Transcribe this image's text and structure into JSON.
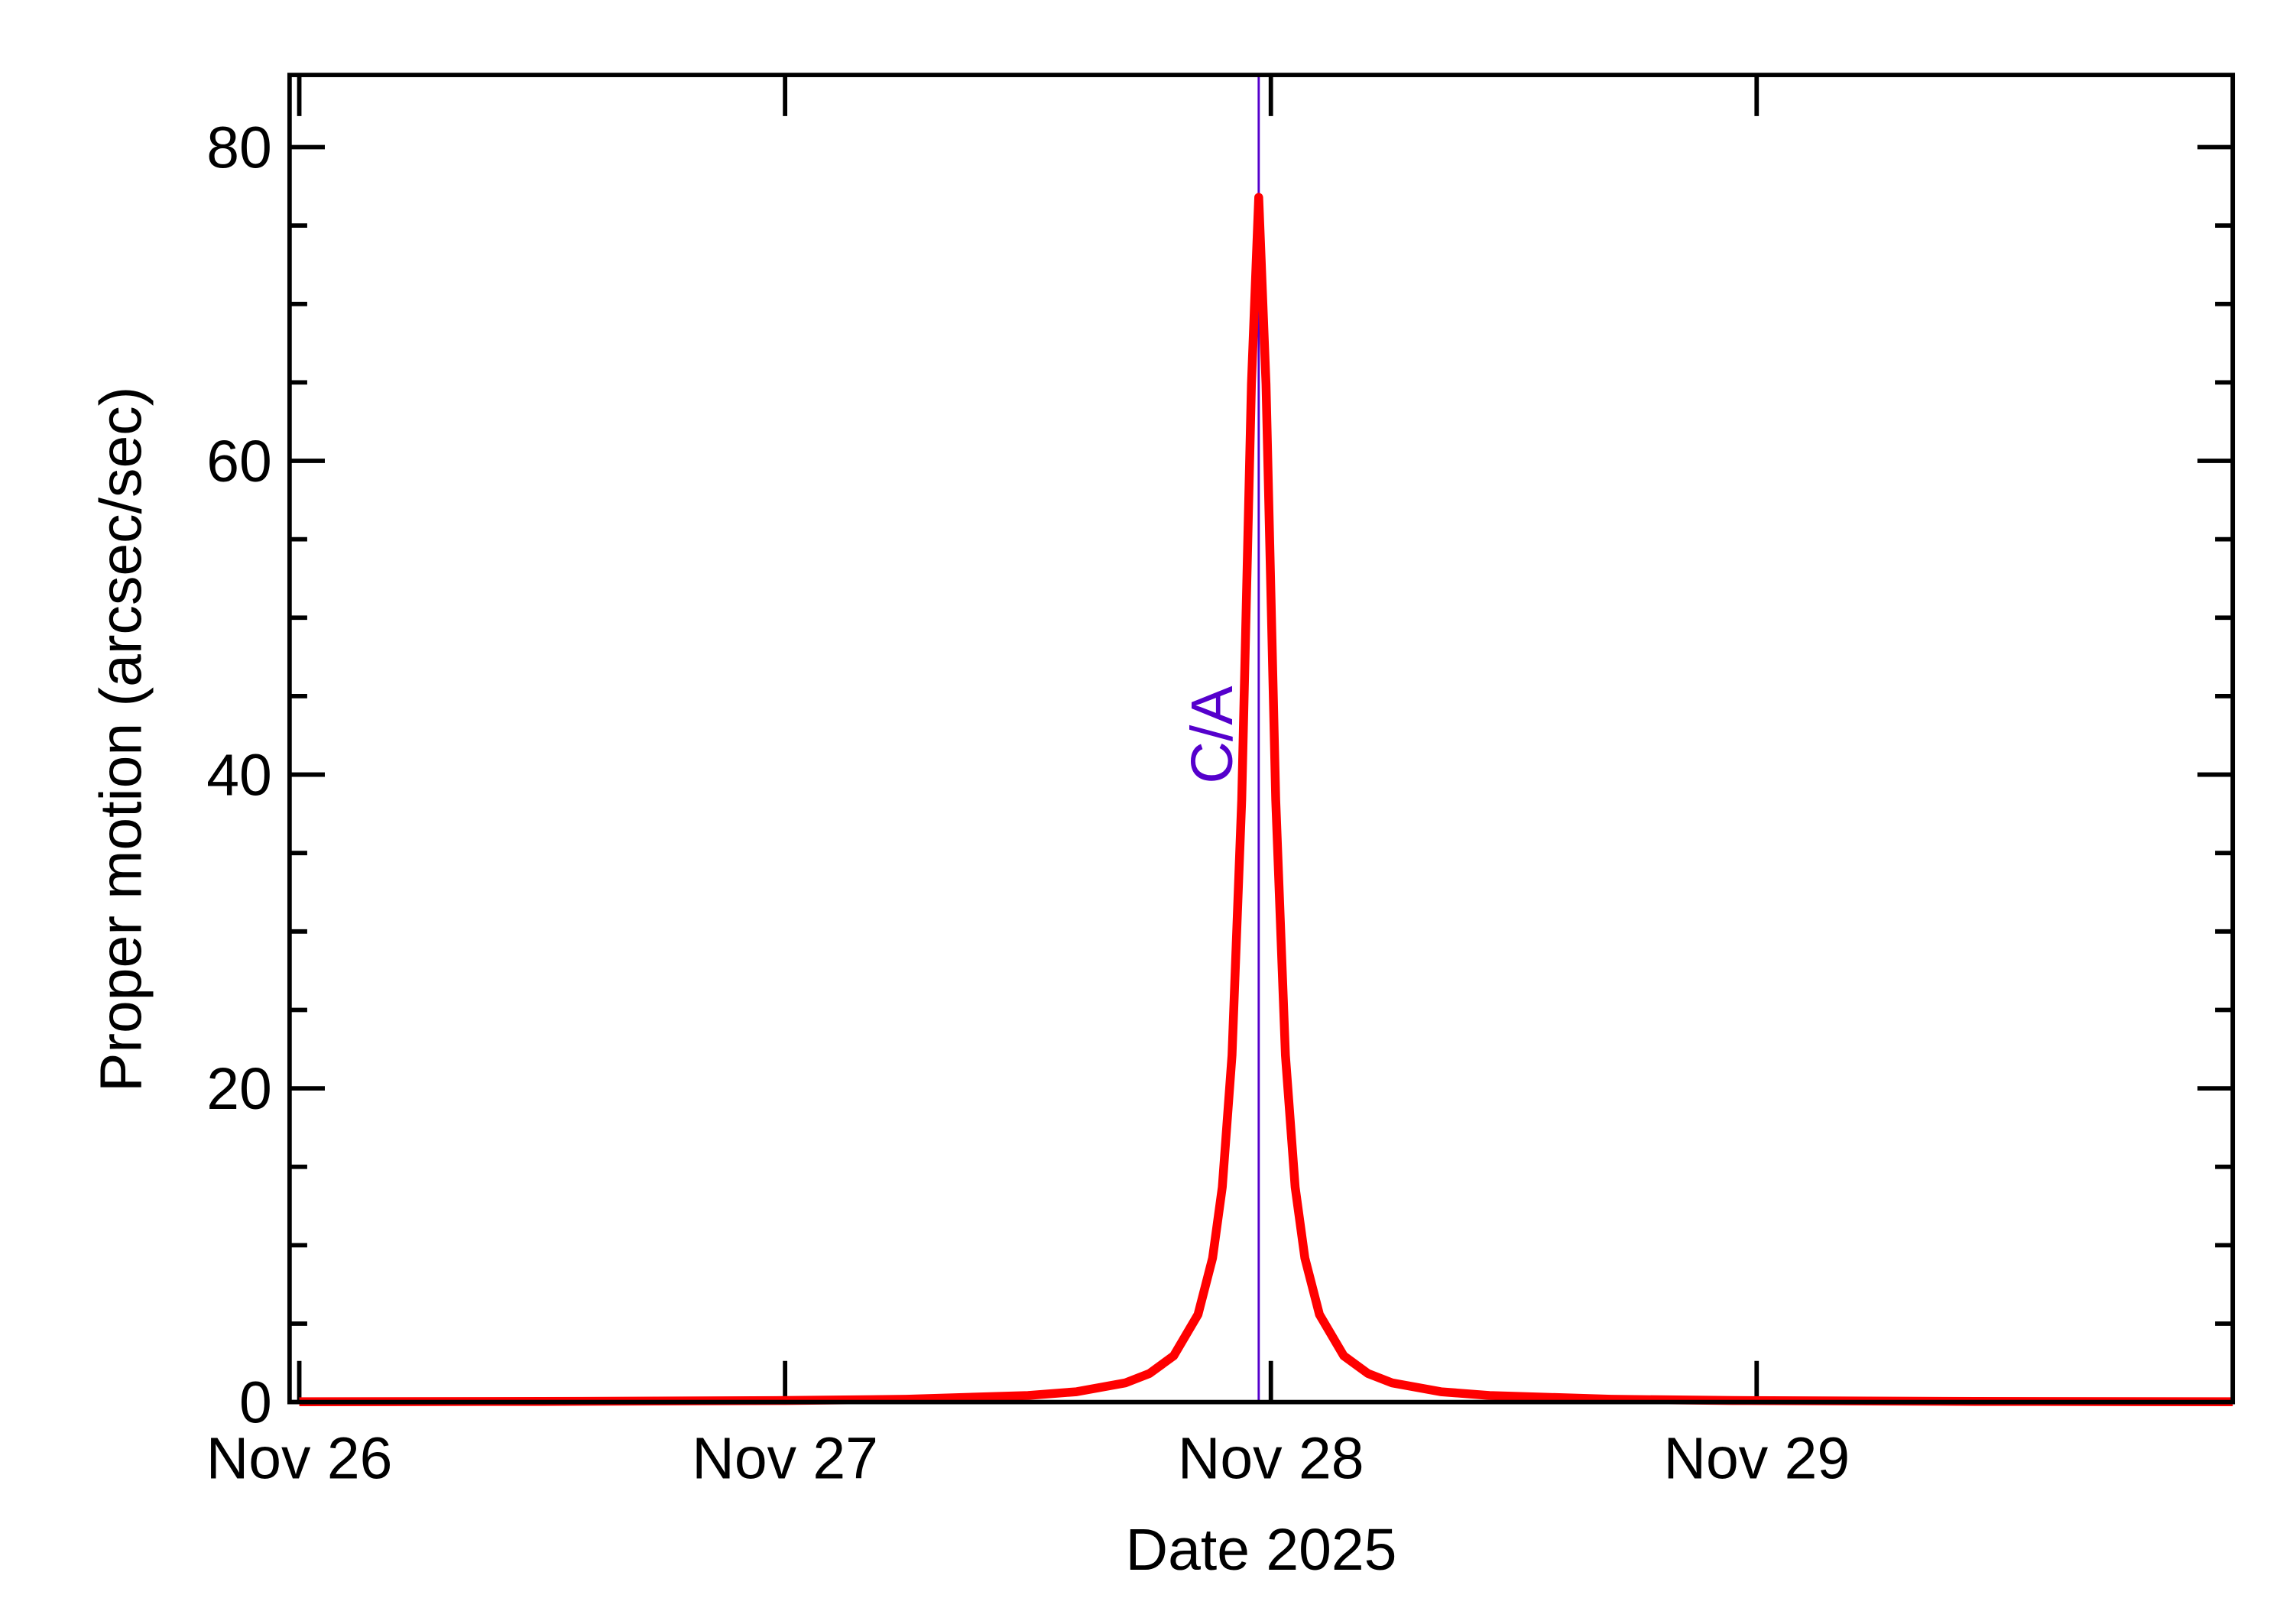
{
  "chart_data": {
    "type": "line",
    "xlabel": "Date 2025",
    "ylabel": "Proper motion (arcsec/sec)",
    "x": [
      0,
      0.5,
      1,
      1.25,
      1.5,
      1.6,
      1.7,
      1.75,
      1.8,
      1.85,
      1.88,
      1.9,
      1.92,
      1.94,
      1.96,
      1.975,
      1.99,
      2.01,
      2.03,
      2.05,
      2.07,
      2.1,
      2.15,
      2.2,
      2.25,
      2.35,
      2.45,
      2.7,
      2.95,
      3.45,
      3.98
    ],
    "series": [
      {
        "color": "#ff0000",
        "values": [
          0.02,
          0.04,
          0.1,
          0.18,
          0.42,
          0.66,
          1.22,
          1.82,
          2.95,
          5.58,
          9.18,
          13.7,
          22.1,
          38.4,
          64.9,
          76.8,
          64.9,
          38.4,
          22.1,
          13.7,
          9.18,
          5.58,
          2.95,
          1.82,
          1.22,
          0.66,
          0.42,
          0.18,
          0.1,
          0.04,
          0.02
        ]
      }
    ],
    "xlim": [
      -0.02,
      3.98
    ],
    "xticks": [
      {
        "value": 0,
        "label": "Nov 26"
      },
      {
        "value": 1,
        "label": "Nov 27"
      },
      {
        "value": 2,
        "label": "Nov 28"
      },
      {
        "value": 3,
        "label": "Nov 29"
      }
    ],
    "ylim": [
      0,
      84.6
    ],
    "yticks": [
      0,
      20,
      40,
      60,
      80
    ],
    "yticks_minor": [
      5,
      10,
      15,
      25,
      30,
      35,
      45,
      50,
      55,
      65,
      70,
      75
    ],
    "annotations": [
      {
        "text": "C/A",
        "x": 1.975,
        "color": "#5500cc"
      }
    ]
  }
}
